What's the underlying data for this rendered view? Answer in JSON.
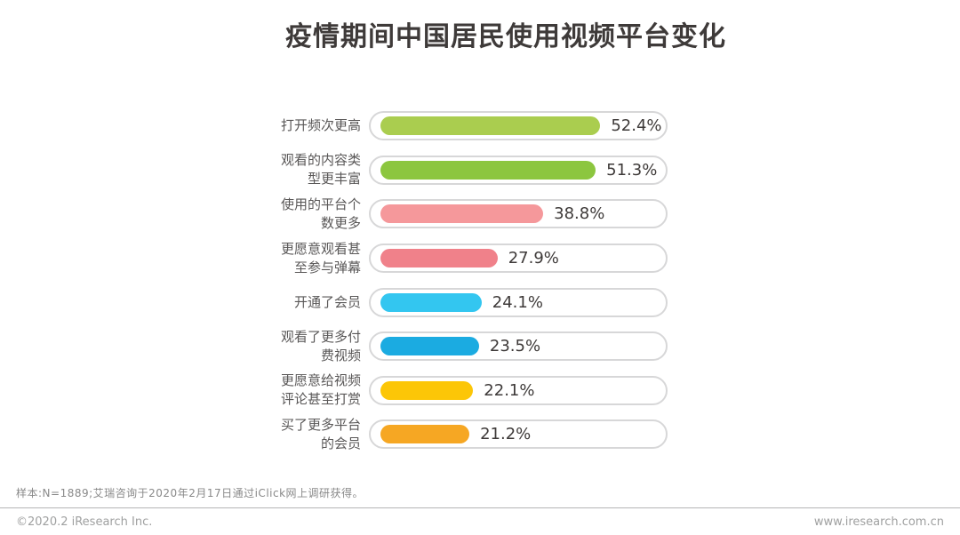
{
  "title": "疫情期间中国居民使用视频平台变化",
  "chart_data": {
    "type": "bar",
    "orientation": "horizontal",
    "title": "疫情期间中国居民使用视频平台变化",
    "unit": "%",
    "xlim": [
      0,
      71
    ],
    "grid": false,
    "legend": "none",
    "categories": [
      "打开频次更高",
      "观看的内容类型更丰富",
      "使用的平台个数更多",
      "更愿意观看甚至参与弹幕",
      "开通了会员",
      "观看了更多付费视频",
      "更愿意给视频评论甚至打赏",
      "买了更多平台的会员"
    ],
    "values": [
      52.4,
      51.3,
      38.8,
      27.9,
      24.1,
      23.5,
      22.1,
      21.2
    ],
    "value_labels": [
      "52.4%",
      "51.3%",
      "38.8%",
      "27.9%",
      "24.1%",
      "23.5%",
      "22.1%",
      "21.2%"
    ],
    "bar_colors": [
      "#aacd4f",
      "#8cc63f",
      "#f5989b",
      "#f0818a",
      "#33c6f0",
      "#1babe1",
      "#fcc607",
      "#f6a723"
    ],
    "track_fill_color": "#ffffff",
    "track_border_color": "#d7d7d8",
    "label_color": "#595757",
    "value_label_color": "#3e3a39"
  },
  "footnote": "样本:N=1889;艾瑞咨询于2020年2月17日通过iClick网上调研获得。",
  "footer": {
    "left": "©2020.2 iResearch Inc.",
    "right": "www.iresearch.com.cn"
  }
}
